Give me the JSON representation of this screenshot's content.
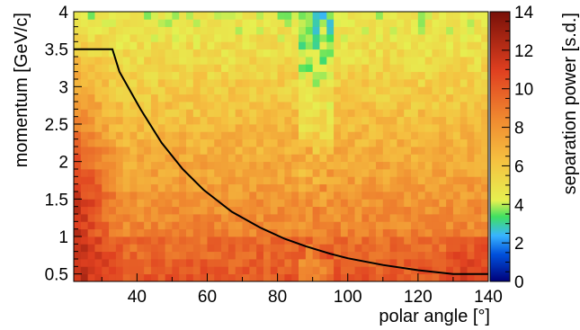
{
  "chart_data": {
    "type": "heatmap",
    "title": "",
    "xlabel": "polar angle [°]",
    "ylabel": "momentum [GeV/c]",
    "zlabel": "separation power [s.d.]",
    "xlim": [
      22,
      140
    ],
    "ylim": [
      0.4,
      4.0
    ],
    "zlim": [
      0,
      14
    ],
    "x_ticks": [
      40,
      60,
      80,
      100,
      120,
      140
    ],
    "y_ticks": [
      0.5,
      1,
      1.5,
      2,
      2.5,
      3,
      3.5,
      4
    ],
    "y_tick_labels": [
      "0.5",
      "1",
      "1.5",
      "2",
      "2.5",
      "3",
      "3.5",
      "4"
    ],
    "z_ticks": [
      0,
      2,
      4,
      6,
      8,
      10,
      12,
      14
    ],
    "colormap": "rainbow-like: dark blue (0) → cyan (2) → green (3.5) → yellow (4.5) → orange (8) → red (11) → dark red (14)",
    "grid": false,
    "heatmap_summary": "Separation is ~4–5 s.d. (yellow) at high momentum (3.5–4 GeV/c), rising to ~8–10 s.d. (orange-red) below 1.5 GeV/c; highest (~12–14 s.d.) near 25–30° at 1.2–2 GeV/c; a lower-separation vertical band near 85–95°.",
    "threshold_curve": {
      "name": "",
      "x": [
        22,
        33,
        35,
        38,
        41,
        47,
        53,
        59,
        67,
        75,
        82,
        88,
        95,
        100,
        110,
        120,
        130,
        140
      ],
      "y": [
        3.5,
        3.5,
        3.2,
        2.95,
        2.7,
        2.25,
        1.9,
        1.62,
        1.33,
        1.12,
        0.97,
        0.87,
        0.77,
        0.71,
        0.62,
        0.55,
        0.5,
        0.5
      ]
    }
  }
}
